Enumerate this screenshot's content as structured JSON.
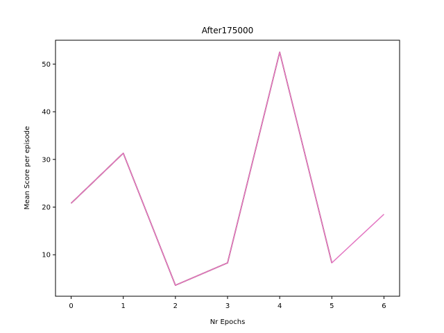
{
  "chart_data": {
    "type": "line",
    "title": "After175000",
    "xlabel": "Nr Epochs",
    "ylabel": "Mean Score per episode",
    "xlim": [
      -0.3,
      6.3
    ],
    "ylim": [
      1.3,
      55
    ],
    "x_ticks": [
      0,
      1,
      2,
      3,
      4,
      5,
      6
    ],
    "y_ticks": [
      10,
      20,
      30,
      40,
      50
    ],
    "grid": false,
    "legend": "none",
    "series": [
      {
        "x": [
          0,
          1,
          2,
          3,
          4,
          5
        ],
        "values": [
          20.8,
          31.3,
          3.6,
          8.3,
          52.5,
          8.3
        ],
        "color": "#1f77b4"
      },
      {
        "x": [
          0,
          1,
          2,
          3,
          4,
          5
        ],
        "values": [
          20.8,
          31.3,
          3.6,
          8.3,
          52.5,
          8.3
        ],
        "color": "#ff7f0e"
      },
      {
        "x": [
          0,
          1,
          2,
          3,
          4,
          5
        ],
        "values": [
          20.8,
          31.3,
          3.6,
          8.3,
          52.5,
          8.3
        ],
        "color": "#2ca02c"
      },
      {
        "x": [
          0,
          1,
          2,
          3,
          4,
          5
        ],
        "values": [
          20.8,
          31.3,
          3.6,
          8.3,
          52.5,
          8.3
        ],
        "color": "#d62728"
      },
      {
        "x": [
          0,
          1,
          2,
          3,
          4,
          5
        ],
        "values": [
          20.8,
          31.3,
          3.6,
          8.3,
          52.5,
          8.3
        ],
        "color": "#9467bd"
      },
      {
        "x": [
          0,
          1,
          2,
          3,
          4,
          5
        ],
        "values": [
          20.8,
          31.3,
          3.6,
          8.3,
          52.5,
          8.3
        ],
        "color": "#8c564b"
      },
      {
        "x": [
          0,
          1,
          2,
          3,
          4,
          5,
          6
        ],
        "values": [
          20.8,
          31.3,
          3.6,
          8.3,
          52.5,
          8.3,
          18.5
        ],
        "color": "#e377c2"
      }
    ]
  }
}
